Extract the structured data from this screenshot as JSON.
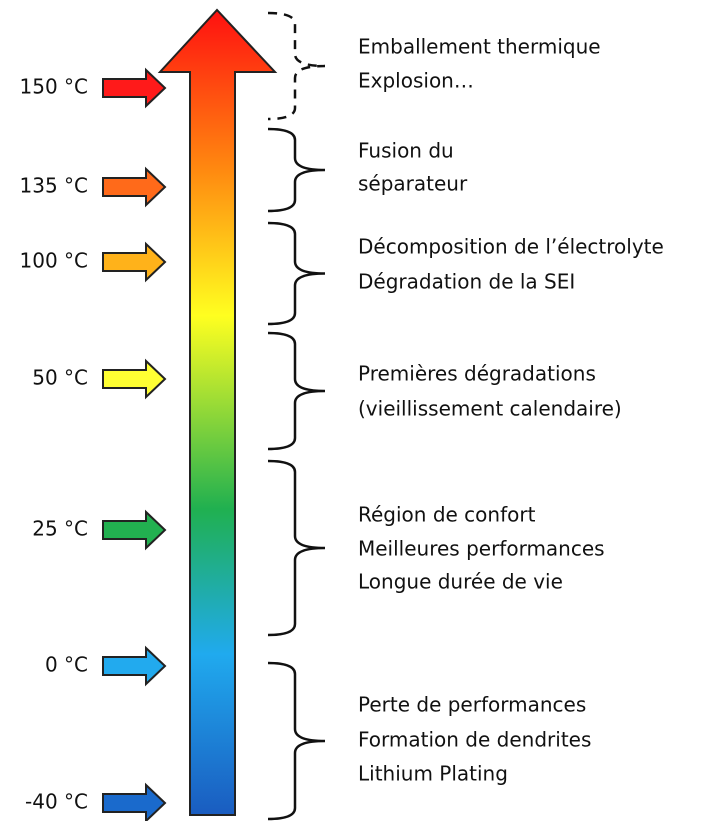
{
  "temperatures": [
    "150 °C",
    "135 °C",
    "100 °C",
    "50 °C",
    "25 °C",
    "0 °C",
    "-40 °C"
  ],
  "regions": [
    {
      "lines": [
        "Emballement thermique",
        "Explosion…"
      ]
    },
    {
      "lines": [
        "Fusion du",
        "séparateur"
      ]
    },
    {
      "lines": [
        "Décomposition de l’électrolyte",
        "Dégradation de  la SEI"
      ]
    },
    {
      "lines": [
        "Premières dégradations",
        "(vieillissement calendaire)"
      ]
    },
    {
      "lines": [
        "Région de confort",
        "Meilleures performances",
        "Longue durée de vie"
      ]
    },
    {
      "lines": [
        "Perte de performances",
        "Formation de dendrites",
        "Lithium Plating"
      ]
    }
  ]
}
